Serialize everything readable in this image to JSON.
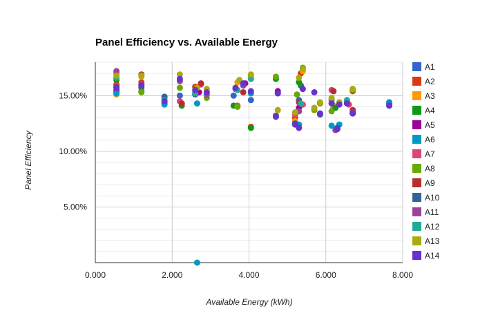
{
  "chart_data": {
    "type": "scatter",
    "title": "Panel Efficiency vs. Available Energy",
    "xlabel": "Available Energy (kWh)",
    "ylabel": "Panel Efficiency",
    "xlim": [
      0,
      8
    ],
    "ylim": [
      0,
      0.18
    ],
    "x_ticks": [
      {
        "value": 0,
        "label": "0.000"
      },
      {
        "value": 2,
        "label": "2.000"
      },
      {
        "value": 4,
        "label": "4.000"
      },
      {
        "value": 6,
        "label": "6.000"
      },
      {
        "value": 8,
        "label": "8.000"
      }
    ],
    "y_ticks": [
      {
        "value": 0.05,
        "label": "5.00%"
      },
      {
        "value": 0.1,
        "label": "10.00%"
      },
      {
        "value": 0.15,
        "label": "15.00%"
      }
    ],
    "grid": true,
    "legend_position": "right",
    "series": [
      {
        "name": "A1",
        "color": "#3366cc",
        "points": [
          [
            0.55,
            0.153
          ],
          [
            1.2,
            0.157
          ],
          [
            2.2,
            0.15
          ],
          [
            3.6,
            0.15
          ],
          [
            4.05,
            0.146
          ],
          [
            5.3,
            0.146
          ],
          [
            6.2,
            0.139
          ],
          [
            7.65,
            0.144
          ]
        ]
      },
      {
        "name": "A2",
        "color": "#dc3912",
        "points": [
          [
            0.55,
            0.16
          ],
          [
            1.2,
            0.162
          ],
          [
            2.6,
            0.158
          ],
          [
            4.05,
            0.122
          ],
          [
            5.2,
            0.13
          ],
          [
            5.35,
            0.17
          ],
          [
            6.15,
            0.146
          ],
          [
            6.7,
            0.154
          ]
        ]
      },
      {
        "name": "A3",
        "color": "#ff9900",
        "points": [
          [
            0.55,
            0.151
          ],
          [
            1.2,
            0.167
          ],
          [
            2.6,
            0.153
          ],
          [
            3.7,
            0.162
          ],
          [
            5.2,
            0.127
          ],
          [
            5.4,
            0.172
          ],
          [
            6.2,
            0.141
          ],
          [
            6.7,
            0.137
          ]
        ]
      },
      {
        "name": "A4",
        "color": "#109618",
        "points": [
          [
            0.55,
            0.164
          ],
          [
            1.2,
            0.154
          ],
          [
            2.25,
            0.141
          ],
          [
            3.6,
            0.141
          ],
          [
            4.05,
            0.121
          ],
          [
            4.7,
            0.165
          ],
          [
            5.3,
            0.162
          ],
          [
            5.35,
            0.159
          ],
          [
            6.25,
            0.139
          ]
        ]
      },
      {
        "name": "A5",
        "color": "#990099",
        "points": [
          [
            0.55,
            0.155
          ],
          [
            1.8,
            0.143
          ],
          [
            2.7,
            0.153
          ],
          [
            3.9,
            0.161
          ],
          [
            4.75,
            0.154
          ],
          [
            5.3,
            0.139
          ],
          [
            6.3,
            0.121
          ],
          [
            6.7,
            0.134
          ]
        ]
      },
      {
        "name": "A6",
        "color": "#0099c6",
        "points": [
          [
            0.55,
            0.152
          ],
          [
            1.8,
            0.142
          ],
          [
            2.65,
            0.0
          ],
          [
            2.65,
            0.143
          ],
          [
            4.05,
            0.152
          ],
          [
            5.3,
            0.124
          ],
          [
            6.15,
            0.123
          ],
          [
            6.35,
            0.124
          ],
          [
            7.65,
            0.143
          ]
        ]
      },
      {
        "name": "A7",
        "color": "#dd4477",
        "points": [
          [
            0.55,
            0.159
          ],
          [
            2.2,
            0.145
          ],
          [
            2.75,
            0.16
          ],
          [
            3.7,
            0.141
          ],
          [
            5.2,
            0.133
          ],
          [
            5.4,
            0.142
          ],
          [
            6.15,
            0.155
          ],
          [
            6.6,
            0.142
          ]
        ]
      },
      {
        "name": "A8",
        "color": "#66aa00",
        "points": [
          [
            0.55,
            0.17
          ],
          [
            1.2,
            0.153
          ],
          [
            1.8,
            0.148
          ],
          [
            2.2,
            0.157
          ],
          [
            2.9,
            0.148
          ],
          [
            3.7,
            0.14
          ],
          [
            4.05,
            0.168
          ],
          [
            4.7,
            0.167
          ],
          [
            5.25,
            0.151
          ],
          [
            5.4,
            0.175
          ],
          [
            5.7,
            0.137
          ],
          [
            5.85,
            0.143
          ],
          [
            6.15,
            0.136
          ],
          [
            6.55,
            0.145
          ],
          [
            6.7,
            0.155
          ]
        ]
      },
      {
        "name": "A9",
        "color": "#b82e2e",
        "points": [
          [
            0.55,
            0.158
          ],
          [
            1.2,
            0.169
          ],
          [
            2.25,
            0.143
          ],
          [
            2.75,
            0.161
          ],
          [
            3.85,
            0.153
          ],
          [
            5.3,
            0.144
          ],
          [
            6.2,
            0.154
          ],
          [
            6.7,
            0.137
          ]
        ]
      },
      {
        "name": "A10",
        "color": "#316395",
        "points": [
          [
            1.8,
            0.149
          ],
          [
            2.6,
            0.151
          ],
          [
            3.65,
            0.156
          ],
          [
            4.7,
            0.132
          ],
          [
            5.2,
            0.125
          ],
          [
            5.85,
            0.133
          ],
          [
            6.3,
            0.121
          ],
          [
            7.65,
            0.141
          ]
        ]
      },
      {
        "name": "A11",
        "color": "#994499",
        "points": [
          [
            0.55,
            0.172
          ],
          [
            1.2,
            0.16
          ],
          [
            2.2,
            0.163
          ],
          [
            2.9,
            0.151
          ],
          [
            3.85,
            0.159
          ],
          [
            5.3,
            0.136
          ],
          [
            6.25,
            0.119
          ],
          [
            6.7,
            0.135
          ]
        ]
      },
      {
        "name": "A12",
        "color": "#22aa99",
        "points": [
          [
            0.55,
            0.166
          ],
          [
            1.8,
            0.146
          ],
          [
            2.6,
            0.152
          ],
          [
            3.7,
            0.155
          ],
          [
            4.05,
            0.165
          ],
          [
            5.35,
            0.143
          ],
          [
            6.15,
            0.146
          ],
          [
            6.55,
            0.146
          ]
        ]
      },
      {
        "name": "A13",
        "color": "#aaaa11",
        "points": [
          [
            0.55,
            0.168
          ],
          [
            1.2,
            0.168
          ],
          [
            2.2,
            0.169
          ],
          [
            2.65,
            0.157
          ],
          [
            2.9,
            0.156
          ],
          [
            3.75,
            0.164
          ],
          [
            4.05,
            0.169
          ],
          [
            4.75,
            0.137
          ],
          [
            5.2,
            0.135
          ],
          [
            5.3,
            0.166
          ],
          [
            5.4,
            0.174
          ],
          [
            5.7,
            0.139
          ],
          [
            5.85,
            0.144
          ],
          [
            6.15,
            0.148
          ],
          [
            6.35,
            0.144
          ],
          [
            6.7,
            0.156
          ]
        ]
      },
      {
        "name": "A14",
        "color": "#6633cc",
        "points": [
          [
            0.55,
            0.157
          ],
          [
            1.2,
            0.159
          ],
          [
            1.8,
            0.145
          ],
          [
            2.2,
            0.165
          ],
          [
            2.6,
            0.155
          ],
          [
            2.9,
            0.153
          ],
          [
            3.65,
            0.157
          ],
          [
            3.85,
            0.161
          ],
          [
            4.05,
            0.154
          ],
          [
            4.7,
            0.131
          ],
          [
            4.75,
            0.152
          ],
          [
            5.2,
            0.124
          ],
          [
            5.3,
            0.121
          ],
          [
            5.4,
            0.156
          ],
          [
            5.7,
            0.153
          ],
          [
            5.85,
            0.134
          ],
          [
            6.15,
            0.143
          ],
          [
            6.3,
            0.12
          ],
          [
            6.35,
            0.142
          ],
          [
            6.55,
            0.143
          ],
          [
            6.7,
            0.134
          ],
          [
            7.65,
            0.141
          ]
        ]
      }
    ]
  }
}
